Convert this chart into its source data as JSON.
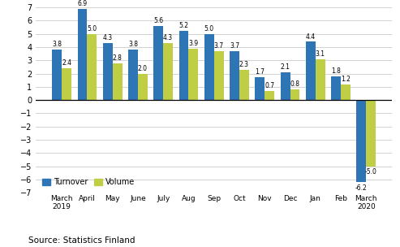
{
  "categories": [
    "March\n2019",
    "April",
    "May",
    "June",
    "July",
    "Aug",
    "Sep",
    "Oct",
    "Nov",
    "Dec",
    "Jan",
    "Feb",
    "March\n2020"
  ],
  "turnover": [
    3.8,
    6.9,
    4.3,
    3.8,
    5.6,
    5.2,
    5.0,
    3.7,
    1.7,
    2.1,
    4.4,
    1.8,
    -6.2
  ],
  "volume": [
    2.4,
    5.0,
    2.8,
    2.0,
    4.3,
    3.9,
    3.7,
    2.3,
    0.7,
    0.8,
    3.1,
    1.2,
    -5.0
  ],
  "turnover_color": "#2E75B6",
  "volume_color": "#BFCE45",
  "ylim": [
    -7,
    7
  ],
  "yticks": [
    -7,
    -6,
    -5,
    -4,
    -3,
    -2,
    -1,
    0,
    1,
    2,
    3,
    4,
    5,
    6,
    7
  ],
  "legend_labels": [
    "Turnover",
    "Volume"
  ],
  "source_text": "Source: Statistics Finland",
  "bar_width": 0.38,
  "label_fontsize": 5.5,
  "tick_fontsize": 7.0,
  "xtick_fontsize": 6.5,
  "legend_fontsize": 7.0,
  "source_fontsize": 7.5
}
